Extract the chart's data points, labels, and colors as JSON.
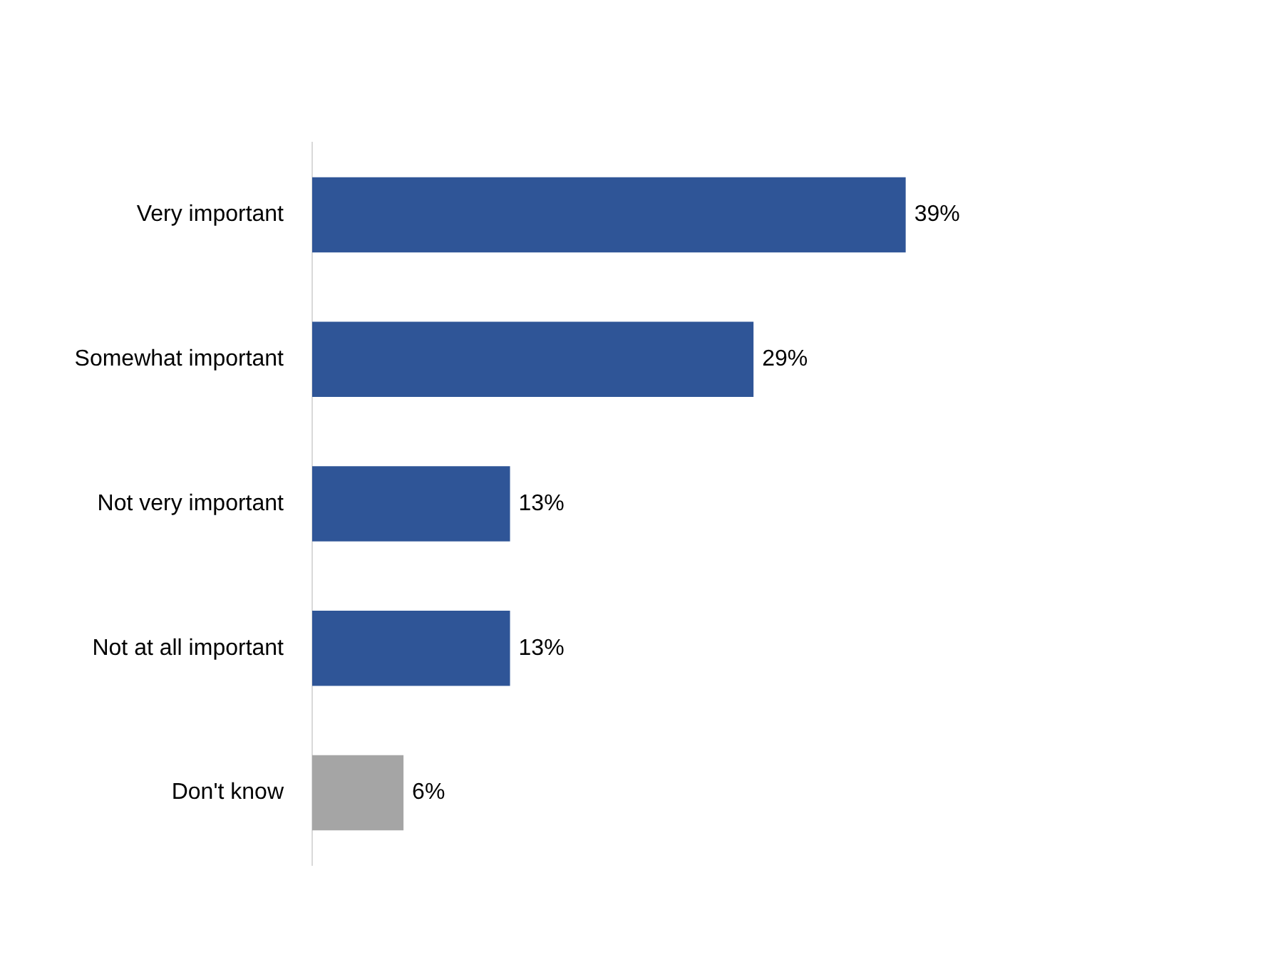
{
  "chart_data": {
    "type": "bar",
    "orientation": "horizontal",
    "categories": [
      "Very important",
      "Somewhat important",
      "Not very important",
      "Not at all important",
      "Don't know"
    ],
    "values": [
      39,
      29,
      13,
      13,
      6
    ],
    "colors": [
      "#2f5597",
      "#2f5597",
      "#2f5597",
      "#2f5597",
      "#a5a5a5"
    ],
    "value_labels": [
      "39%",
      "29%",
      "13%",
      "13%",
      "6%"
    ],
    "grid": false,
    "legend": false,
    "tick_labels": "y"
  }
}
